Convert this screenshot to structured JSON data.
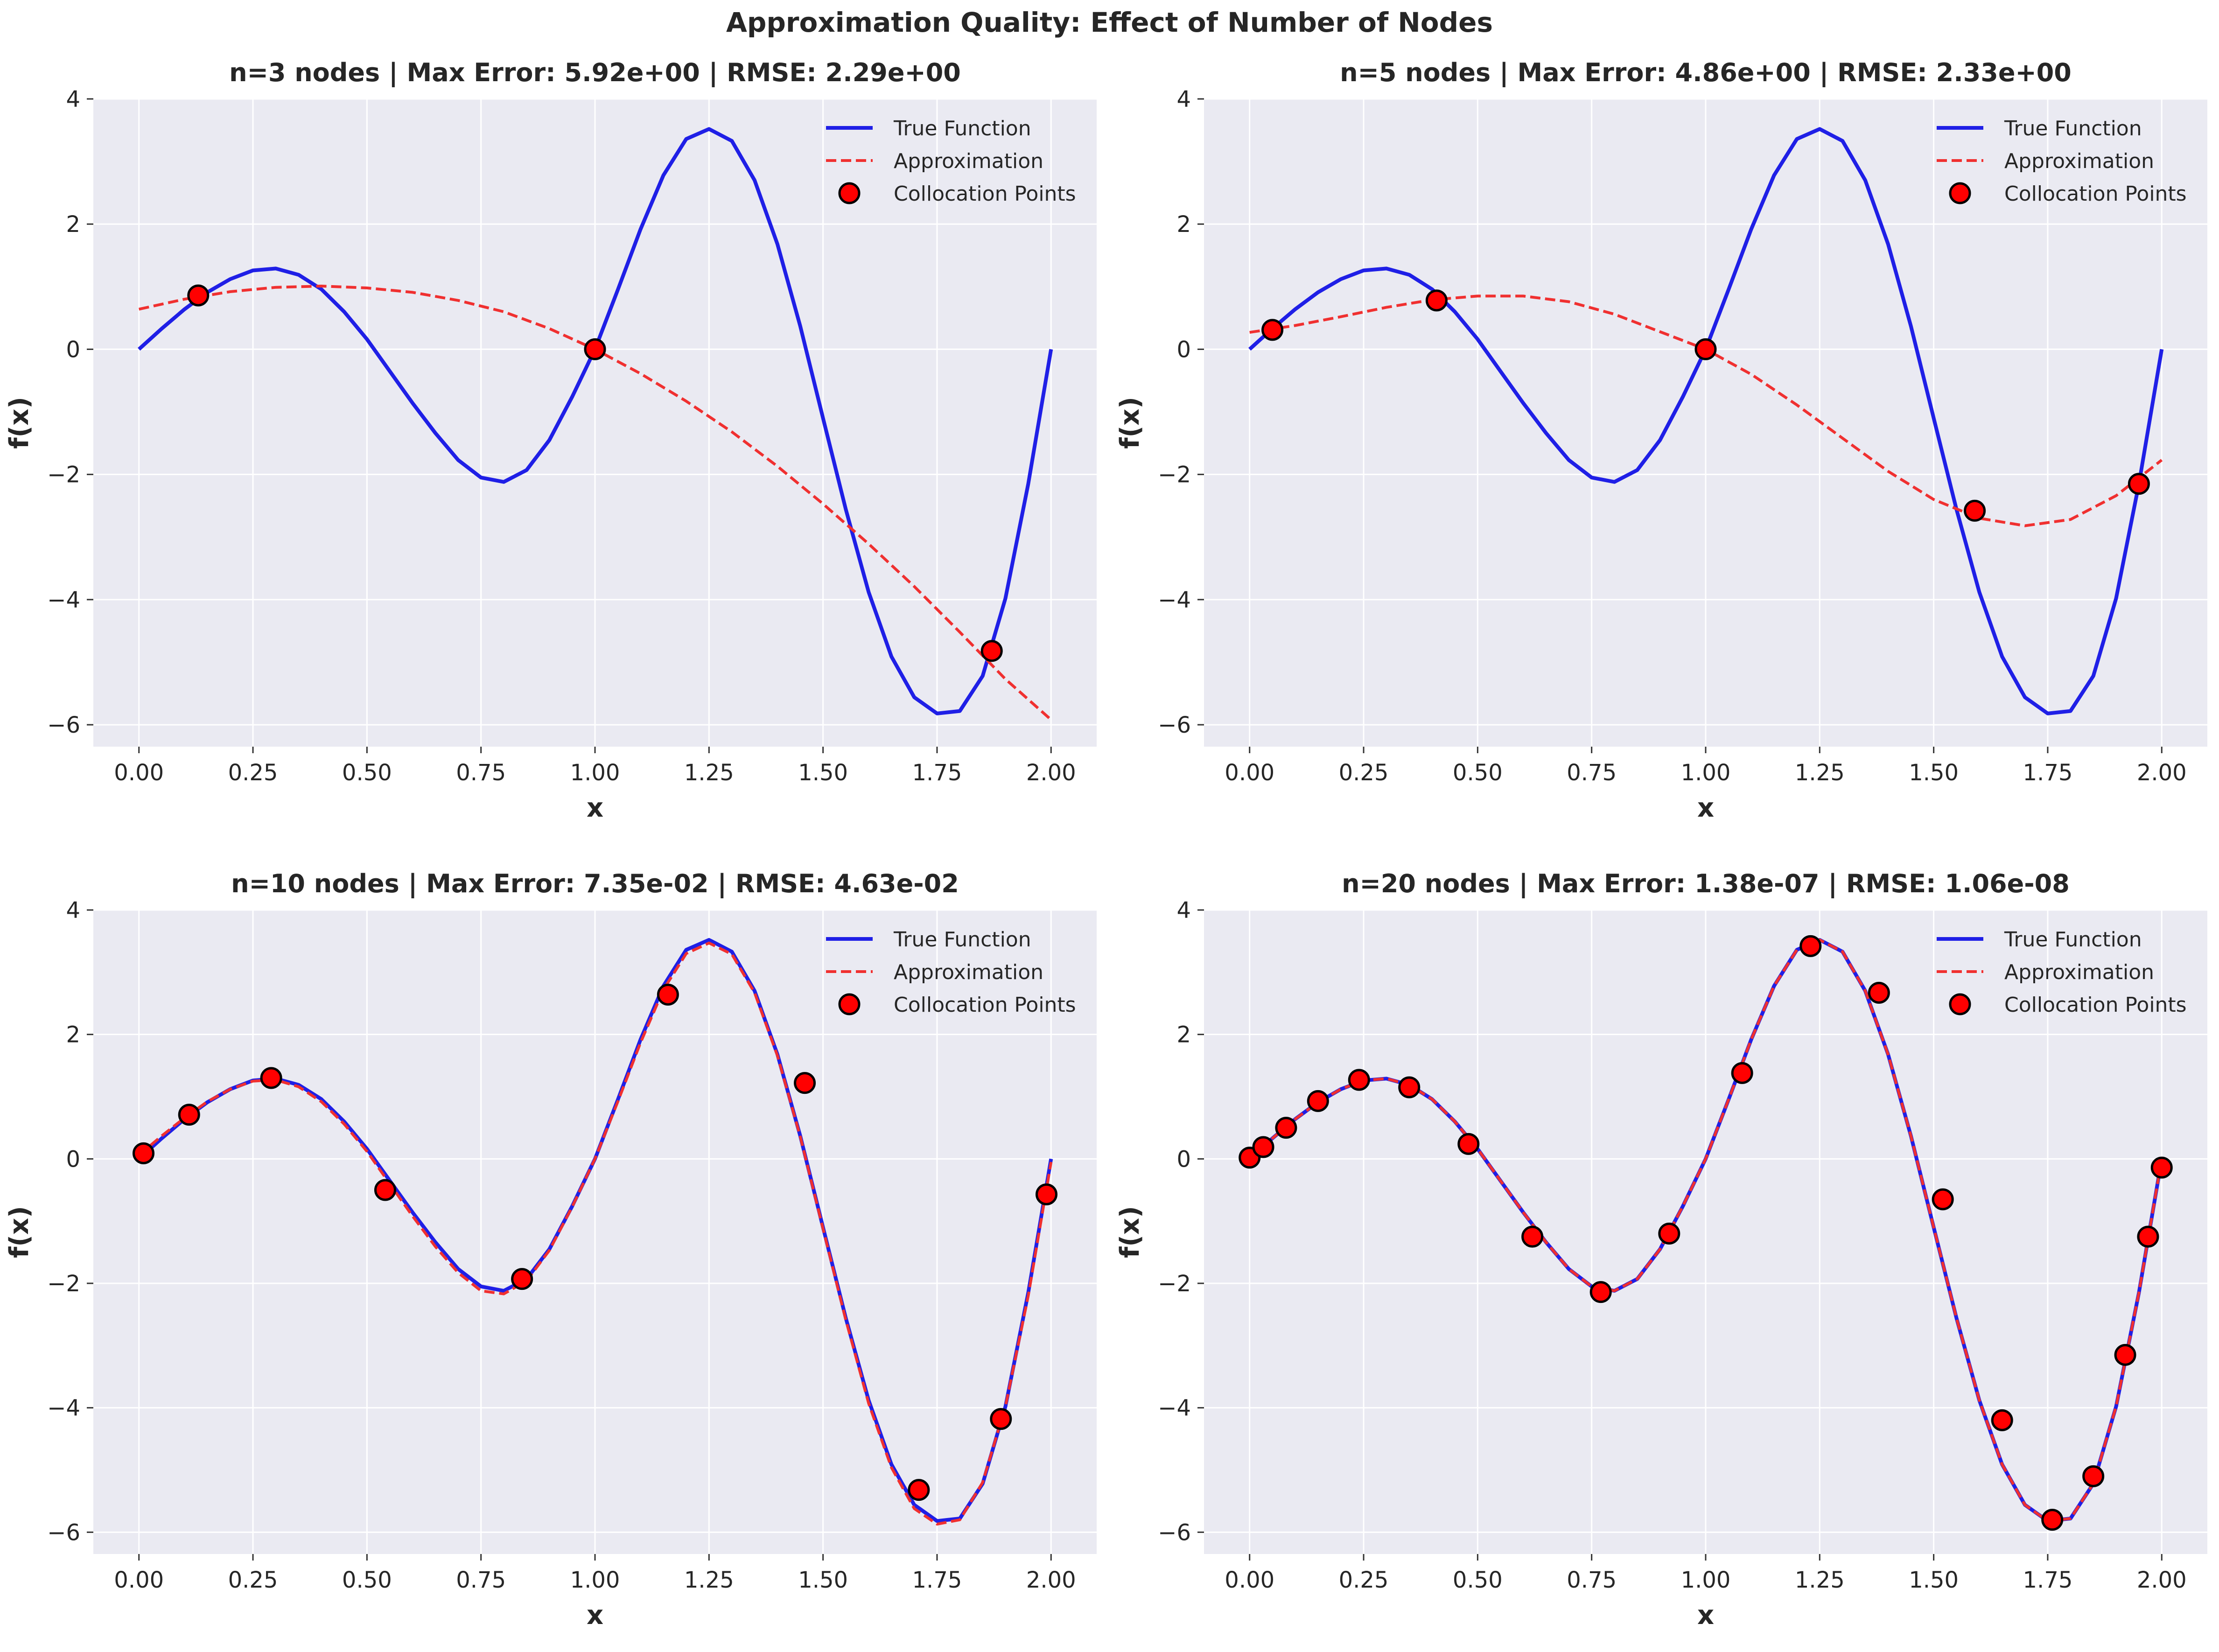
{
  "suptitle": "Approximation Quality: Effect of Number of Nodes",
  "legend_labels": [
    "True Function",
    "Approximation",
    "Collocation Points"
  ],
  "colors": {
    "true_function": "#1f1fe6",
    "approximation": "#f03030",
    "points_fill": "#ff0000",
    "points_edge": "#000000",
    "axes_bg": "#eaeaf2",
    "grid": "#ffffff"
  },
  "chart_data": [
    {
      "type": "line",
      "title": "n=3 nodes | Max Error: 5.92e+00 | RMSE: 2.29e+00",
      "xlabel": "x",
      "ylabel": "f(x)",
      "xlim": [
        -0.1,
        2.1
      ],
      "ylim": [
        -6.35,
        4.0
      ],
      "xticks": [
        "0.00",
        "0.25",
        "0.50",
        "0.75",
        "1.00",
        "1.25",
        "1.50",
        "1.75",
        "2.00"
      ],
      "yticks": [
        "−6",
        "−4",
        "−2",
        "0",
        "2",
        "4"
      ],
      "grid": true,
      "legend": "upper-right",
      "series": [
        {
          "name": "True Function",
          "style": "solid",
          "x": [
            0,
            0.05,
            0.1,
            0.15,
            0.2,
            0.25,
            0.3,
            0.35,
            0.4,
            0.45,
            0.5,
            0.55,
            0.6,
            0.65,
            0.7,
            0.75,
            0.8,
            0.85,
            0.9,
            0.95,
            1.0,
            1.05,
            1.1,
            1.15,
            1.2,
            1.25,
            1.3,
            1.35,
            1.4,
            1.45,
            1.5,
            1.55,
            1.6,
            1.65,
            1.7,
            1.75,
            1.8,
            1.85,
            1.9,
            1.95,
            2.0
          ],
          "y": [
            0,
            0.33,
            0.64,
            0.91,
            1.12,
            1.26,
            1.29,
            1.19,
            0.96,
            0.6,
            0.16,
            -0.35,
            -0.86,
            -1.34,
            -1.77,
            -2.05,
            -2.12,
            -1.93,
            -1.45,
            -0.76,
            0.0,
            0.95,
            1.92,
            2.78,
            3.36,
            3.52,
            3.33,
            2.7,
            1.68,
            0.37,
            -1.1,
            -2.56,
            -3.88,
            -4.91,
            -5.56,
            -5.82,
            -5.78,
            -5.22,
            -3.98,
            -2.15,
            0
          ]
        },
        {
          "name": "Approximation",
          "style": "dashed",
          "x": [
            0,
            0.1,
            0.2,
            0.3,
            0.4,
            0.5,
            0.6,
            0.7,
            0.8,
            0.9,
            1.0,
            1.1,
            1.2,
            1.3,
            1.4,
            1.5,
            1.6,
            1.7,
            1.8,
            1.9,
            2.0
          ],
          "y": [
            0.64,
            0.8,
            0.92,
            0.99,
            1.01,
            0.98,
            0.91,
            0.78,
            0.6,
            0.33,
            0.0,
            -0.39,
            -0.83,
            -1.32,
            -1.87,
            -2.47,
            -3.11,
            -3.79,
            -4.52,
            -5.27,
            -5.92
          ]
        },
        {
          "name": "Collocation Points",
          "style": "points",
          "x": [
            0.13,
            1.0,
            1.87
          ],
          "y": [
            0.86,
            0.0,
            -4.82
          ]
        }
      ]
    },
    {
      "type": "line",
      "title": "n=5 nodes | Max Error: 4.86e+00 | RMSE: 2.33e+00",
      "xlabel": "x",
      "ylabel": "f(x)",
      "xlim": [
        -0.1,
        2.1
      ],
      "ylim": [
        -6.35,
        4.0
      ],
      "xticks": [
        "0.00",
        "0.25",
        "0.50",
        "0.75",
        "1.00",
        "1.25",
        "1.50",
        "1.75",
        "2.00"
      ],
      "yticks": [
        "−6",
        "−4",
        "−2",
        "0",
        "2",
        "4"
      ],
      "grid": true,
      "legend": "upper-right",
      "series": [
        {
          "name": "True Function",
          "style": "solid",
          "x": [
            0,
            0.05,
            0.1,
            0.15,
            0.2,
            0.25,
            0.3,
            0.35,
            0.4,
            0.45,
            0.5,
            0.55,
            0.6,
            0.65,
            0.7,
            0.75,
            0.8,
            0.85,
            0.9,
            0.95,
            1.0,
            1.05,
            1.1,
            1.15,
            1.2,
            1.25,
            1.3,
            1.35,
            1.4,
            1.45,
            1.5,
            1.55,
            1.6,
            1.65,
            1.7,
            1.75,
            1.8,
            1.85,
            1.9,
            1.95,
            2.0
          ],
          "y": [
            0,
            0.33,
            0.64,
            0.91,
            1.12,
            1.26,
            1.29,
            1.19,
            0.96,
            0.6,
            0.16,
            -0.35,
            -0.86,
            -1.34,
            -1.77,
            -2.05,
            -2.12,
            -1.93,
            -1.45,
            -0.76,
            0.0,
            0.95,
            1.92,
            2.78,
            3.36,
            3.52,
            3.33,
            2.7,
            1.68,
            0.37,
            -1.1,
            -2.56,
            -3.88,
            -4.91,
            -5.56,
            -5.82,
            -5.78,
            -5.22,
            -3.98,
            -2.15,
            0
          ]
        },
        {
          "name": "Approximation",
          "style": "dashed",
          "x": [
            0,
            0.1,
            0.2,
            0.3,
            0.4,
            0.5,
            0.6,
            0.7,
            0.8,
            0.9,
            1.0,
            1.1,
            1.2,
            1.3,
            1.4,
            1.5,
            1.6,
            1.7,
            1.8,
            1.9,
            2.0
          ],
          "y": [
            0.27,
            0.38,
            0.52,
            0.67,
            0.79,
            0.85,
            0.85,
            0.76,
            0.56,
            0.28,
            0.0,
            -0.4,
            -0.89,
            -1.42,
            -1.95,
            -2.4,
            -2.7,
            -2.82,
            -2.72,
            -2.34,
            -1.77
          ]
        },
        {
          "name": "Collocation Points",
          "style": "points",
          "x": [
            0.05,
            0.41,
            1.0,
            1.59,
            1.95
          ],
          "y": [
            0.31,
            0.78,
            0.0,
            -2.58,
            -2.15
          ]
        }
      ]
    },
    {
      "type": "line",
      "title": "n=10 nodes | Max Error: 7.35e-02 | RMSE: 4.63e-02",
      "xlabel": "x",
      "ylabel": "f(x)",
      "xlim": [
        -0.1,
        2.1
      ],
      "ylim": [
        -6.35,
        4.0
      ],
      "xticks": [
        "0.00",
        "0.25",
        "0.50",
        "0.75",
        "1.00",
        "1.25",
        "1.50",
        "1.75",
        "2.00"
      ],
      "yticks": [
        "−6",
        "−4",
        "−2",
        "0",
        "2",
        "4"
      ],
      "grid": true,
      "legend": "upper-right",
      "series": [
        {
          "name": "True Function",
          "style": "solid",
          "x": [
            0,
            0.05,
            0.1,
            0.15,
            0.2,
            0.25,
            0.3,
            0.35,
            0.4,
            0.45,
            0.5,
            0.55,
            0.6,
            0.65,
            0.7,
            0.75,
            0.8,
            0.85,
            0.9,
            0.95,
            1.0,
            1.05,
            1.1,
            1.15,
            1.2,
            1.25,
            1.3,
            1.35,
            1.4,
            1.45,
            1.5,
            1.55,
            1.6,
            1.65,
            1.7,
            1.75,
            1.8,
            1.85,
            1.9,
            1.95,
            2.0
          ],
          "y": [
            0,
            0.33,
            0.64,
            0.91,
            1.12,
            1.26,
            1.29,
            1.19,
            0.96,
            0.6,
            0.16,
            -0.35,
            -0.86,
            -1.34,
            -1.77,
            -2.05,
            -2.12,
            -1.93,
            -1.45,
            -0.76,
            0.0,
            0.95,
            1.92,
            2.78,
            3.36,
            3.52,
            3.33,
            2.7,
            1.68,
            0.37,
            -1.1,
            -2.56,
            -3.88,
            -4.91,
            -5.56,
            -5.82,
            -5.78,
            -5.22,
            -3.98,
            -2.15,
            0
          ]
        },
        {
          "name": "Approximation",
          "style": "dashed",
          "x": [
            0,
            0.05,
            0.1,
            0.15,
            0.2,
            0.25,
            0.3,
            0.35,
            0.4,
            0.45,
            0.5,
            0.55,
            0.6,
            0.65,
            0.7,
            0.75,
            0.8,
            0.85,
            0.9,
            0.95,
            1.0,
            1.05,
            1.1,
            1.15,
            1.2,
            1.25,
            1.3,
            1.35,
            1.4,
            1.45,
            1.5,
            1.55,
            1.6,
            1.65,
            1.7,
            1.75,
            1.8,
            1.85,
            1.9,
            1.95,
            2.0
          ],
          "y": [
            0.06,
            0.37,
            0.66,
            0.92,
            1.12,
            1.25,
            1.27,
            1.16,
            0.92,
            0.56,
            0.12,
            -0.4,
            -0.92,
            -1.41,
            -1.83,
            -2.12,
            -2.17,
            -1.96,
            -1.47,
            -0.77,
            0.0,
            0.92,
            1.87,
            2.72,
            3.3,
            3.47,
            3.29,
            2.67,
            1.66,
            0.36,
            -1.12,
            -2.59,
            -3.93,
            -4.96,
            -5.62,
            -5.87,
            -5.8,
            -5.2,
            -3.98,
            -2.2,
            -0.05
          ]
        },
        {
          "name": "Collocation Points",
          "style": "points",
          "x": [
            0.01,
            0.11,
            0.29,
            0.54,
            0.84,
            1.16,
            1.46,
            1.71,
            1.89,
            1.99
          ],
          "y": [
            0.09,
            0.71,
            1.3,
            -0.5,
            -1.93,
            2.64,
            1.22,
            -5.32,
            -4.18,
            -0.57
          ]
        }
      ]
    },
    {
      "type": "line",
      "title": "n=20 nodes | Max Error: 1.38e-07 | RMSE: 1.06e-08",
      "xlabel": "x",
      "ylabel": "f(x)",
      "xlim": [
        -0.1,
        2.1
      ],
      "ylim": [
        -6.35,
        4.0
      ],
      "xticks": [
        "0.00",
        "0.25",
        "0.50",
        "0.75",
        "1.00",
        "1.25",
        "1.50",
        "1.75",
        "2.00"
      ],
      "yticks": [
        "−6",
        "−4",
        "−2",
        "0",
        "2",
        "4"
      ],
      "grid": true,
      "legend": "upper-right",
      "series": [
        {
          "name": "True Function",
          "style": "solid",
          "x": [
            0,
            0.05,
            0.1,
            0.15,
            0.2,
            0.25,
            0.3,
            0.35,
            0.4,
            0.45,
            0.5,
            0.55,
            0.6,
            0.65,
            0.7,
            0.75,
            0.8,
            0.85,
            0.9,
            0.95,
            1.0,
            1.05,
            1.1,
            1.15,
            1.2,
            1.25,
            1.3,
            1.35,
            1.4,
            1.45,
            1.5,
            1.55,
            1.6,
            1.65,
            1.7,
            1.75,
            1.8,
            1.85,
            1.9,
            1.95,
            2.0
          ],
          "y": [
            0,
            0.33,
            0.64,
            0.91,
            1.12,
            1.26,
            1.29,
            1.19,
            0.96,
            0.6,
            0.16,
            -0.35,
            -0.86,
            -1.34,
            -1.77,
            -2.05,
            -2.12,
            -1.93,
            -1.45,
            -0.76,
            0.0,
            0.95,
            1.92,
            2.78,
            3.36,
            3.52,
            3.33,
            2.7,
            1.68,
            0.37,
            -1.1,
            -2.56,
            -3.88,
            -4.91,
            -5.56,
            -5.82,
            -5.78,
            -5.22,
            -3.98,
            -2.15,
            0
          ]
        },
        {
          "name": "Approximation",
          "style": "dashed",
          "x": [
            0,
            0.05,
            0.1,
            0.15,
            0.2,
            0.25,
            0.3,
            0.35,
            0.4,
            0.45,
            0.5,
            0.55,
            0.6,
            0.65,
            0.7,
            0.75,
            0.8,
            0.85,
            0.9,
            0.95,
            1.0,
            1.05,
            1.1,
            1.15,
            1.2,
            1.25,
            1.3,
            1.35,
            1.4,
            1.45,
            1.5,
            1.55,
            1.6,
            1.65,
            1.7,
            1.75,
            1.8,
            1.85,
            1.9,
            1.95,
            2.0
          ],
          "y": [
            0,
            0.33,
            0.64,
            0.91,
            1.12,
            1.26,
            1.29,
            1.19,
            0.96,
            0.6,
            0.16,
            -0.35,
            -0.86,
            -1.34,
            -1.77,
            -2.05,
            -2.12,
            -1.93,
            -1.45,
            -0.76,
            0.0,
            0.95,
            1.92,
            2.78,
            3.36,
            3.52,
            3.33,
            2.7,
            1.68,
            0.37,
            -1.1,
            -2.56,
            -3.88,
            -4.91,
            -5.56,
            -5.82,
            -5.78,
            -5.22,
            -3.98,
            -2.15,
            0
          ]
        },
        {
          "name": "Collocation Points",
          "style": "points",
          "x": [
            0.0,
            0.03,
            0.08,
            0.15,
            0.24,
            0.35,
            0.48,
            0.62,
            0.77,
            0.92,
            1.08,
            1.23,
            1.38,
            1.52,
            1.65,
            1.76,
            1.85,
            1.92,
            1.97,
            2.0
          ],
          "y": [
            0.02,
            0.19,
            0.5,
            0.93,
            1.27,
            1.15,
            0.24,
            -1.25,
            -2.14,
            -1.2,
            1.38,
            3.42,
            2.67,
            -0.65,
            -4.2,
            -5.8,
            -5.1,
            -3.15,
            -1.25,
            -0.14
          ]
        }
      ]
    }
  ]
}
